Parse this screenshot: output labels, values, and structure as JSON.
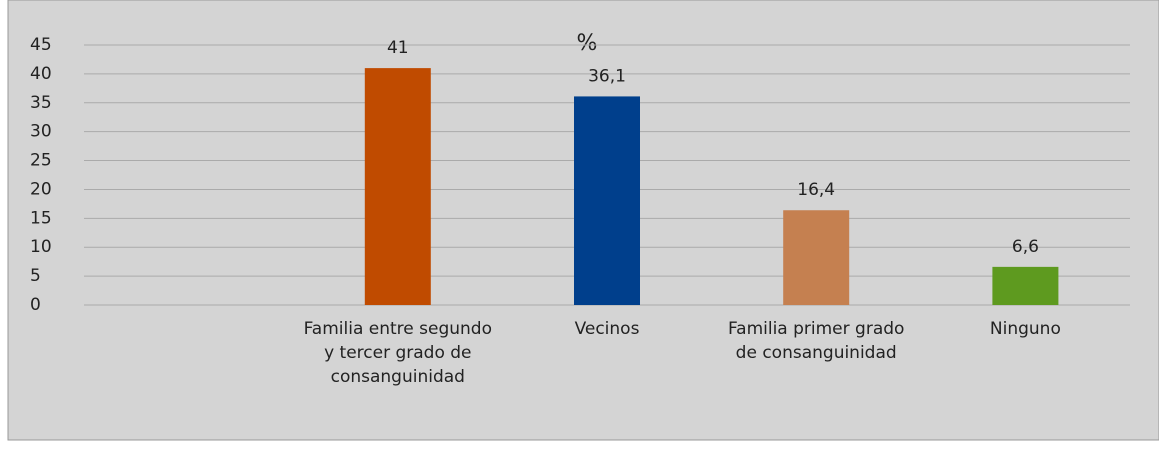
{
  "chart_data": {
    "type": "bar",
    "title": "%",
    "categories": [
      null,
      "Familia entre segundo y tercer grado de consanguinidad",
      "Vecinos",
      "Familia primer grado de consanguinidad",
      "Ninguno"
    ],
    "values": [
      null,
      41,
      36.1,
      16.4,
      6.6
    ],
    "value_labels": [
      null,
      "41",
      "36,1",
      "16,4",
      "6,6"
    ],
    "colors": [
      null,
      "#c04b00",
      "#003f8c",
      "#c58050",
      "#5e9a1f"
    ],
    "ylim": [
      0,
      45
    ],
    "yticks": [
      0,
      5,
      10,
      15,
      20,
      25,
      30,
      35,
      40,
      45
    ],
    "grid": true
  }
}
